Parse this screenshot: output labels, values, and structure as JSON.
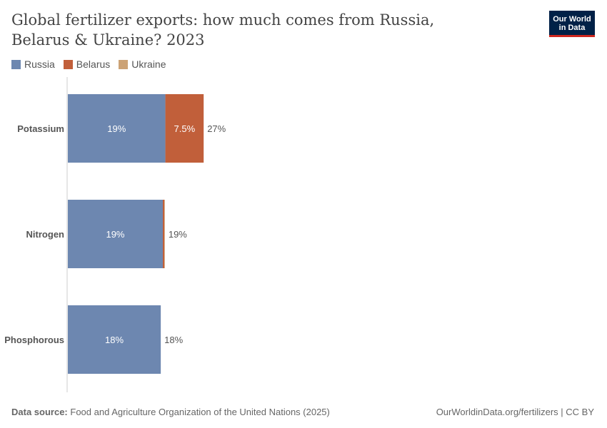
{
  "header": {
    "title": "Global fertilizer exports: how much comes from Russia, Belarus & Ukraine? 2023",
    "logo_text": "Our World in Data"
  },
  "colors": {
    "Russia": "#6d87b0",
    "Belarus": "#c15f3a",
    "Ukraine": "#cca275"
  },
  "footer": {
    "source_label": "Data source:",
    "source": "Food and Agriculture Organization of the United Nations (2025)",
    "link": "OurWorldinData.org/fertilizers | CC BY"
  },
  "chart_data": {
    "type": "bar",
    "orientation": "horizontal-stacked",
    "categories": [
      "Potassium",
      "Nitrogen",
      "Phosphorous"
    ],
    "unit": "%",
    "legend_position": "top-left",
    "series": [
      {
        "name": "Russia",
        "values": [
          19.1,
          18.6,
          18.2
        ],
        "labels": [
          "19%",
          "19%",
          "18%"
        ]
      },
      {
        "name": "Belarus",
        "values": [
          7.5,
          0.3,
          0
        ],
        "labels": [
          "7.5%",
          "",
          ""
        ]
      },
      {
        "name": "Ukraine",
        "values": [
          0,
          0.1,
          0
        ],
        "labels": [
          "",
          "",
          ""
        ]
      }
    ],
    "totals": [
      "27%",
      "19%",
      "18%"
    ],
    "xlim": [
      0,
      100
    ]
  }
}
